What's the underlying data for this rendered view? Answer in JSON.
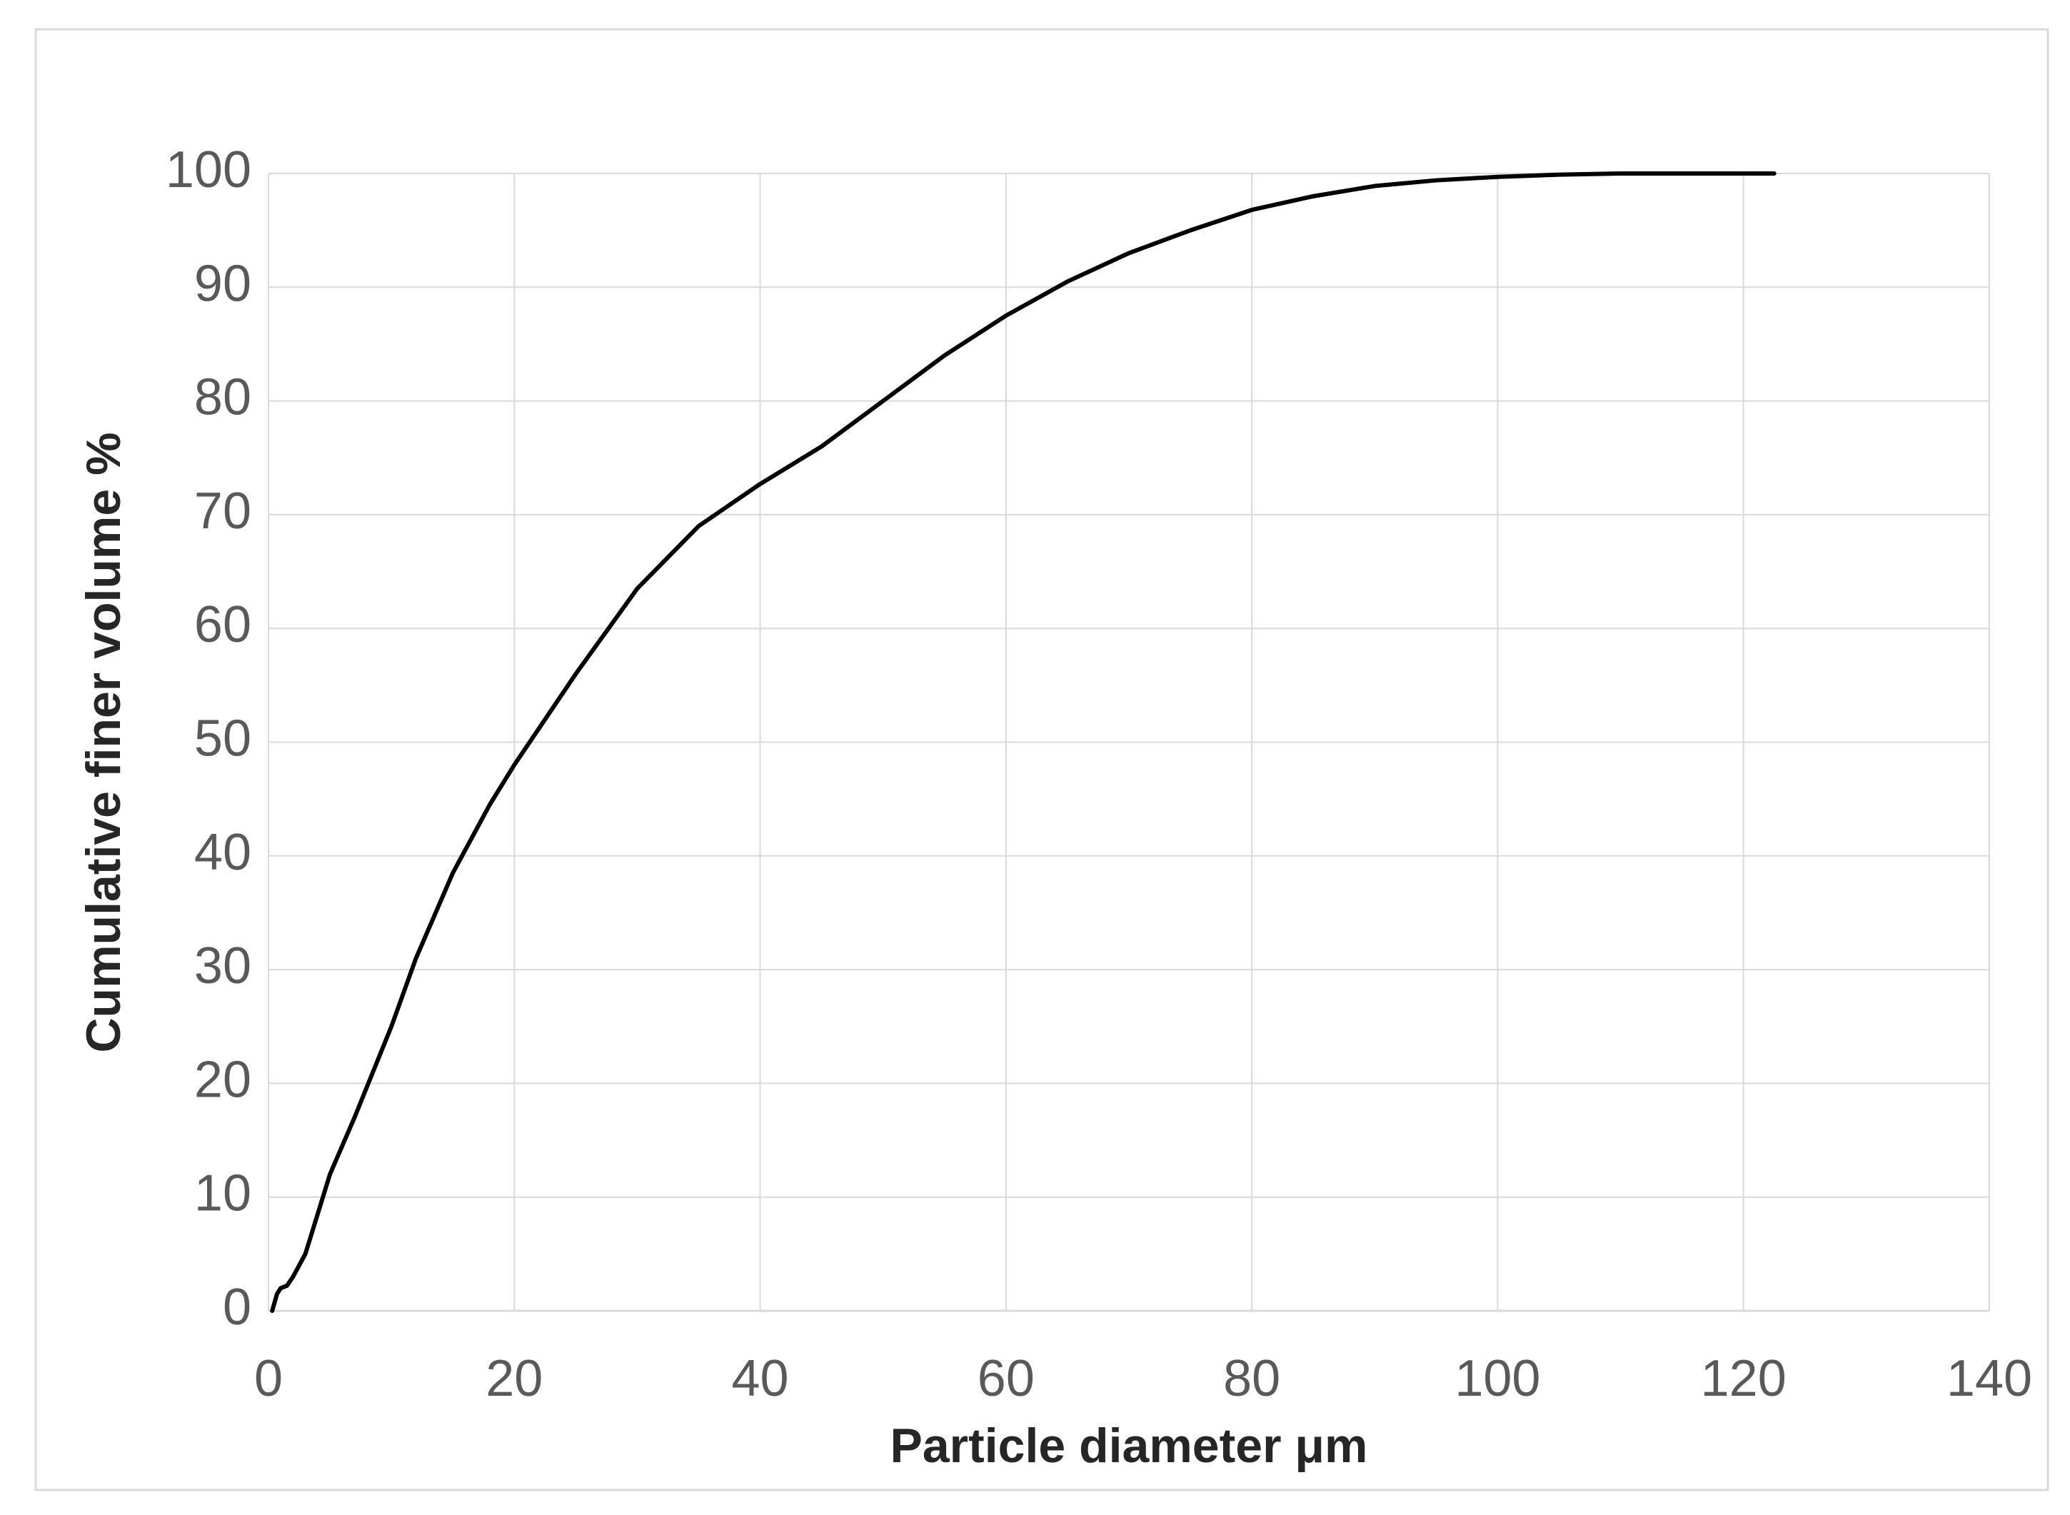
{
  "chart_data": {
    "type": "line",
    "x_label": "Particle diameter μm",
    "y_label": "Cumulative finer volume %",
    "x": [
      0.3,
      0.7,
      1,
      1.5,
      2,
      3,
      4,
      5,
      7,
      10,
      12,
      15,
      18,
      20,
      25,
      30,
      35,
      40,
      45,
      50,
      55,
      60,
      65,
      70,
      75,
      80,
      85,
      90,
      95,
      100,
      105,
      110,
      122.5
    ],
    "series": [
      {
        "color": "#000000",
        "values": [
          0,
          1.5,
          2,
          2.2,
          3,
          5,
          8.5,
          12,
          17,
          25,
          31,
          38.5,
          44.5,
          48,
          56,
          63.5,
          69,
          72.7,
          76,
          80,
          84,
          87.5,
          90.5,
          93,
          95,
          96.8,
          98,
          98.9,
          99.4,
          99.7,
          99.9,
          100,
          100
        ]
      }
    ],
    "xlim": [
      0,
      140
    ],
    "xticks": [
      0,
      20,
      40,
      60,
      80,
      100,
      120,
      140
    ],
    "ylim": [
      0,
      100
    ],
    "yticks": [
      0,
      10,
      20,
      30,
      40,
      50,
      60,
      70,
      80,
      90,
      100
    ],
    "grid": true
  }
}
